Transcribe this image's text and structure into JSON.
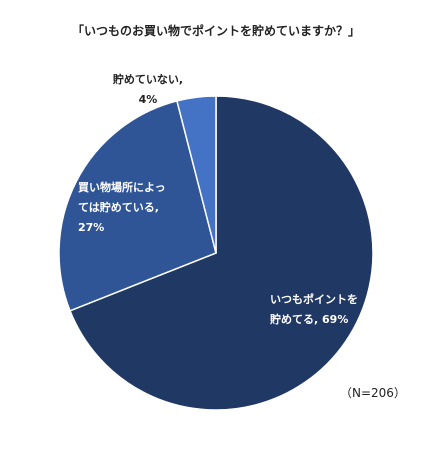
{
  "chart_data": {
    "type": "pie",
    "title": "「いつものお買い物でポイントを貯めていますか？」",
    "categories": [
      "いつもポイントを貯めてる",
      "買い物場所によっては貯めている",
      "貯めていない"
    ],
    "values": [
      69,
      27,
      4
    ],
    "value_labels": [
      "69%",
      "27%",
      "4%"
    ],
    "colors": [
      "#203864",
      "#2f5597",
      "#4472c4"
    ],
    "note": "（N=206）"
  }
}
